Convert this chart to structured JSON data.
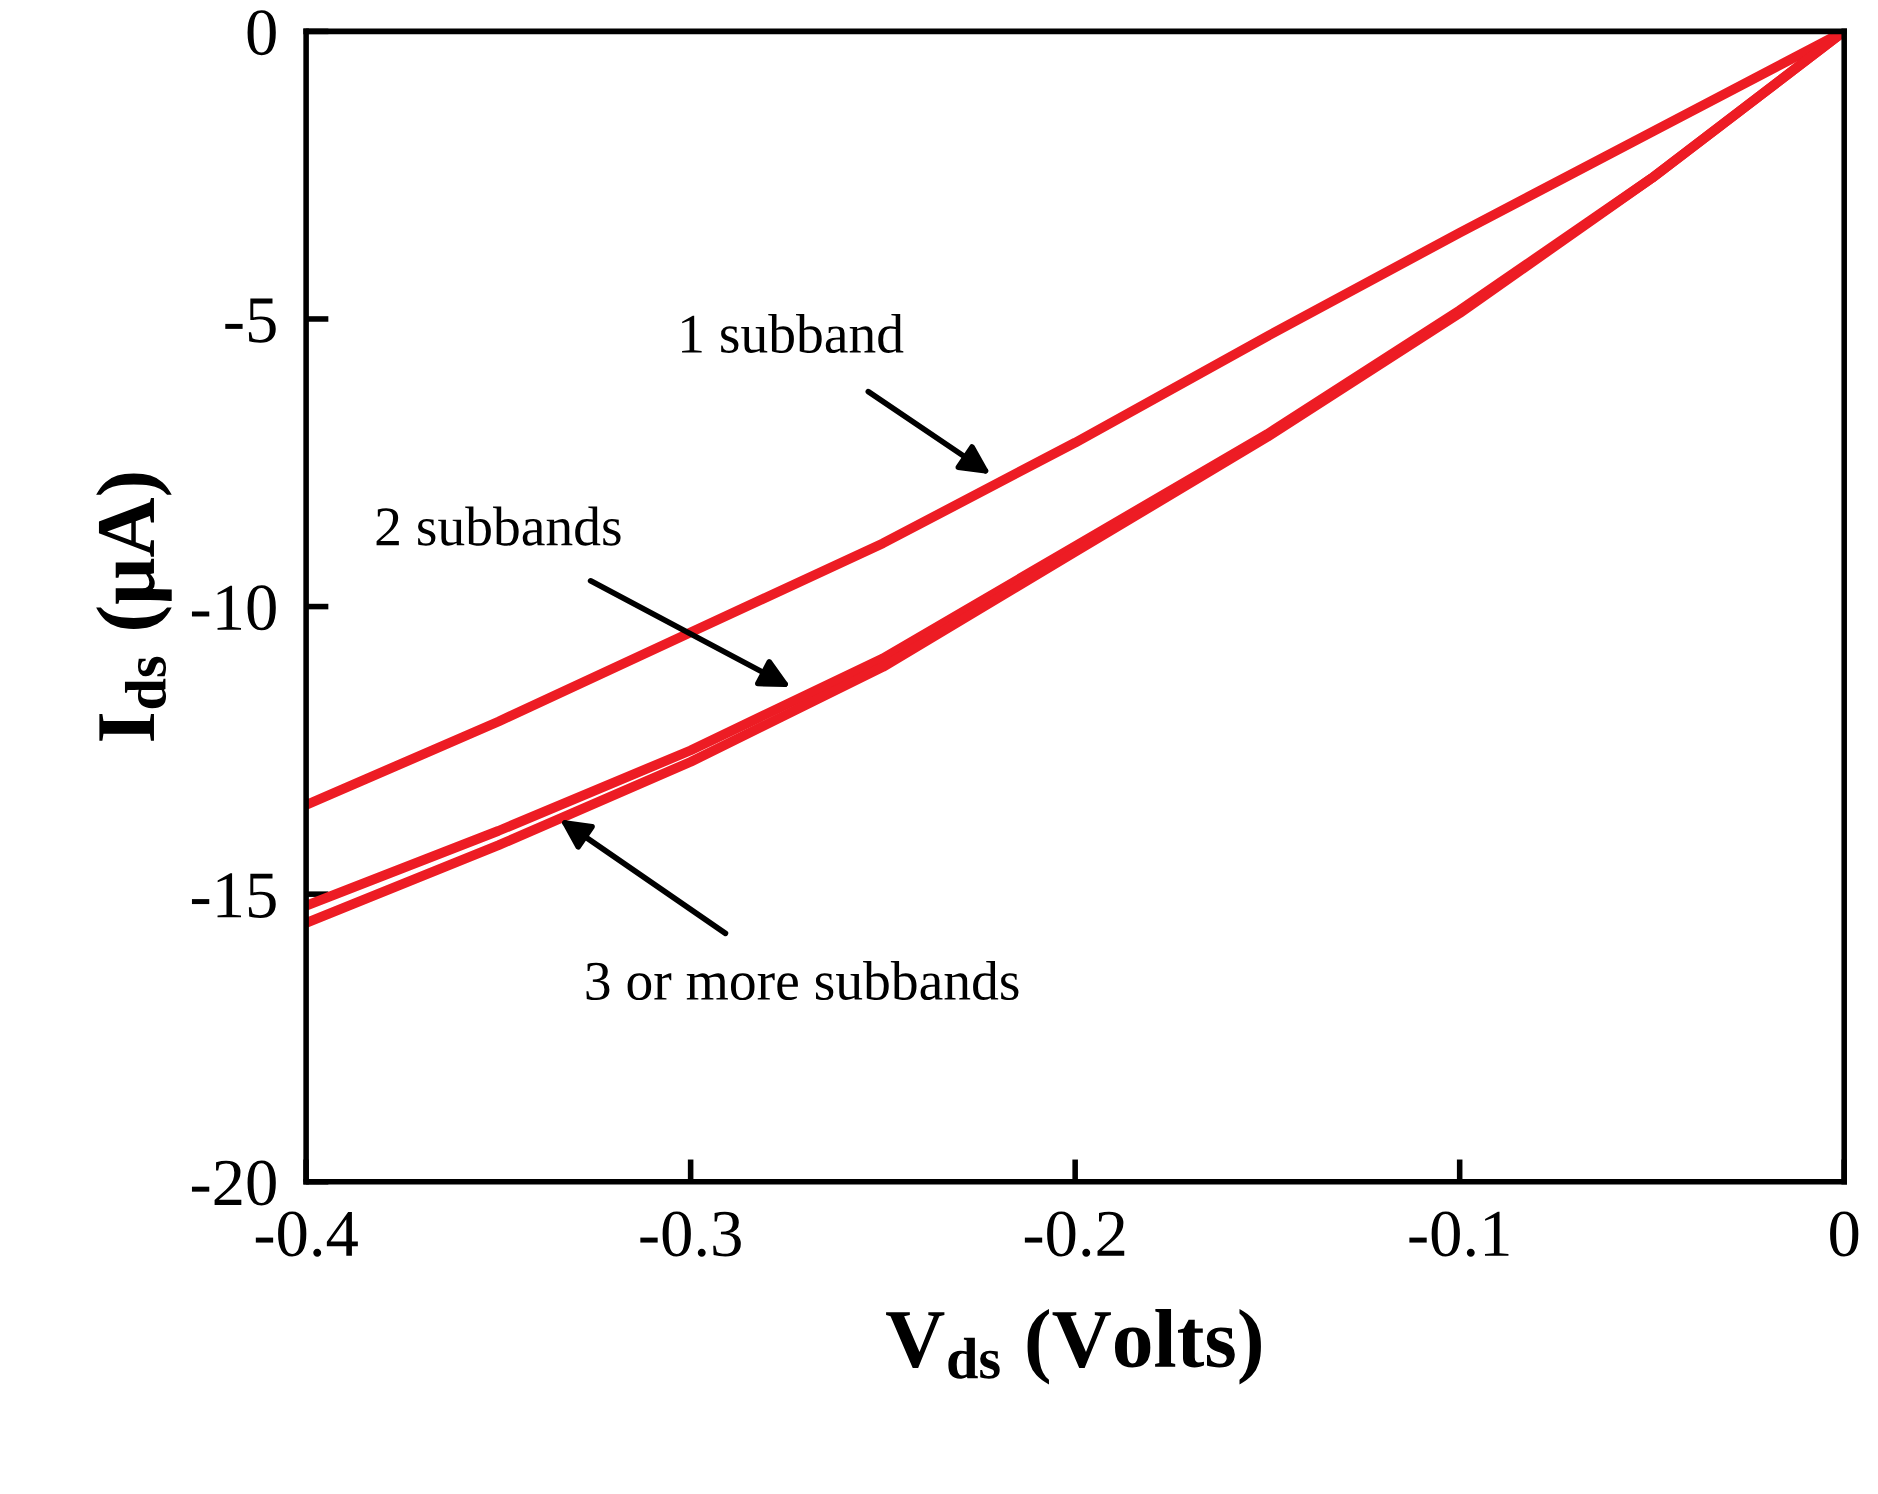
{
  "chart_data": {
    "type": "line",
    "xlabel": "V$_{ds}$ (Volts)",
    "ylabel": "I$_{ds}$ (μA)",
    "x": [
      -0.4,
      -0.35,
      -0.3,
      -0.25,
      -0.2,
      -0.15,
      -0.1,
      -0.05,
      0
    ],
    "series": [
      {
        "color": "#ed1c24",
        "values": [
          -13.45,
          -12.0,
          -10.45,
          -8.9,
          -7.15,
          -5.3,
          -3.5,
          -1.75,
          0
        ]
      },
      {
        "color": "#ed1c24",
        "values": [
          -15.2,
          -13.9,
          -12.5,
          -10.9,
          -8.95,
          -7.0,
          -4.85,
          -2.55,
          0
        ]
      },
      {
        "color": "#ed1c24",
        "values": [
          -15.5,
          -14.15,
          -12.7,
          -11.05,
          -9.05,
          -7.05,
          -4.9,
          -2.55,
          0
        ]
      }
    ],
    "annotations": [
      {
        "text": "1 subband",
        "x": -0.222,
        "y": -7.7
      },
      {
        "text": "2 subbands",
        "x": -0.274,
        "y": -11.4
      },
      {
        "text": "3 or more subbands",
        "x": -0.334,
        "y": -13.7
      }
    ],
    "xlim": [
      -0.4,
      0
    ],
    "ylim": [
      -20,
      0
    ],
    "xticks": [
      -0.4,
      -0.3,
      -0.2,
      -0.1,
      0
    ],
    "yticks": [
      -20,
      -15,
      -10,
      -5,
      0
    ],
    "grid": false,
    "marker": "none",
    "line_style": "solid"
  }
}
